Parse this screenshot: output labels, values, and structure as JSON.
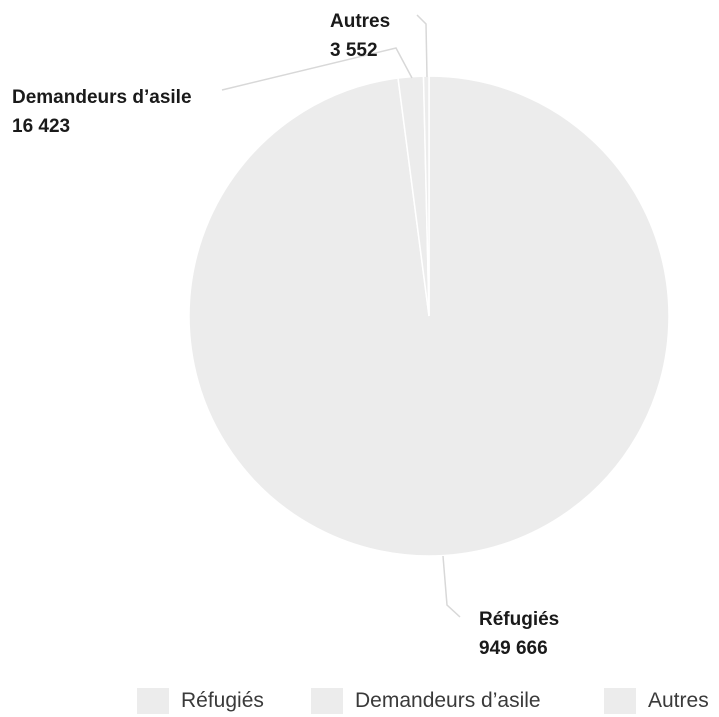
{
  "chart_data": {
    "type": "pie",
    "title": "",
    "slices": [
      {
        "name": "Réfugiés",
        "value": 949666,
        "value_label": "949 666",
        "color": "#ececec"
      },
      {
        "name": "Demandeurs d’asile",
        "value": 16423,
        "value_label": "16 423",
        "color": "#ececec"
      },
      {
        "name": "Autres",
        "value": 3552,
        "value_label": "3 552",
        "color": "#ececec"
      }
    ],
    "slice_border_color": "#ffffff",
    "leader_line_color": "#d8d8d8",
    "legend": {
      "placement": "bottom"
    }
  }
}
